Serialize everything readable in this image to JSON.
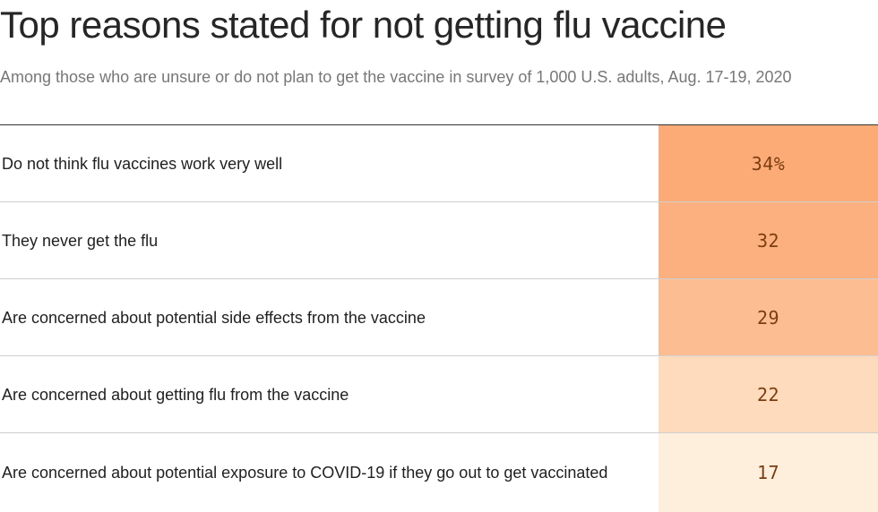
{
  "chart_data": {
    "type": "table",
    "title": "Top reasons stated for not getting flu vaccine",
    "subtitle": "Among those who are unsure or do not plan to get the vaccine in survey of 1,000 U.S. adults, Aug. 17-19, 2020",
    "rows": [
      {
        "label": "Do not think flu vaccines work very well",
        "value": 34,
        "display": "34%",
        "color": "#fcab77"
      },
      {
        "label": "They never get the flu",
        "value": 32,
        "display": "32",
        "color": "#fcb07f"
      },
      {
        "label": "Are concerned about potential side effects from the vaccine",
        "value": 29,
        "display": "29",
        "color": "#fdbd92"
      },
      {
        "label": "Are concerned about getting flu from the vaccine",
        "value": 22,
        "display": "22",
        "color": "#fedbbd"
      },
      {
        "label": "Are concerned about potential exposure to COVID-19 if they go out to get vaccinated",
        "value": 17,
        "display": "17",
        "color": "#feeedc"
      }
    ]
  }
}
